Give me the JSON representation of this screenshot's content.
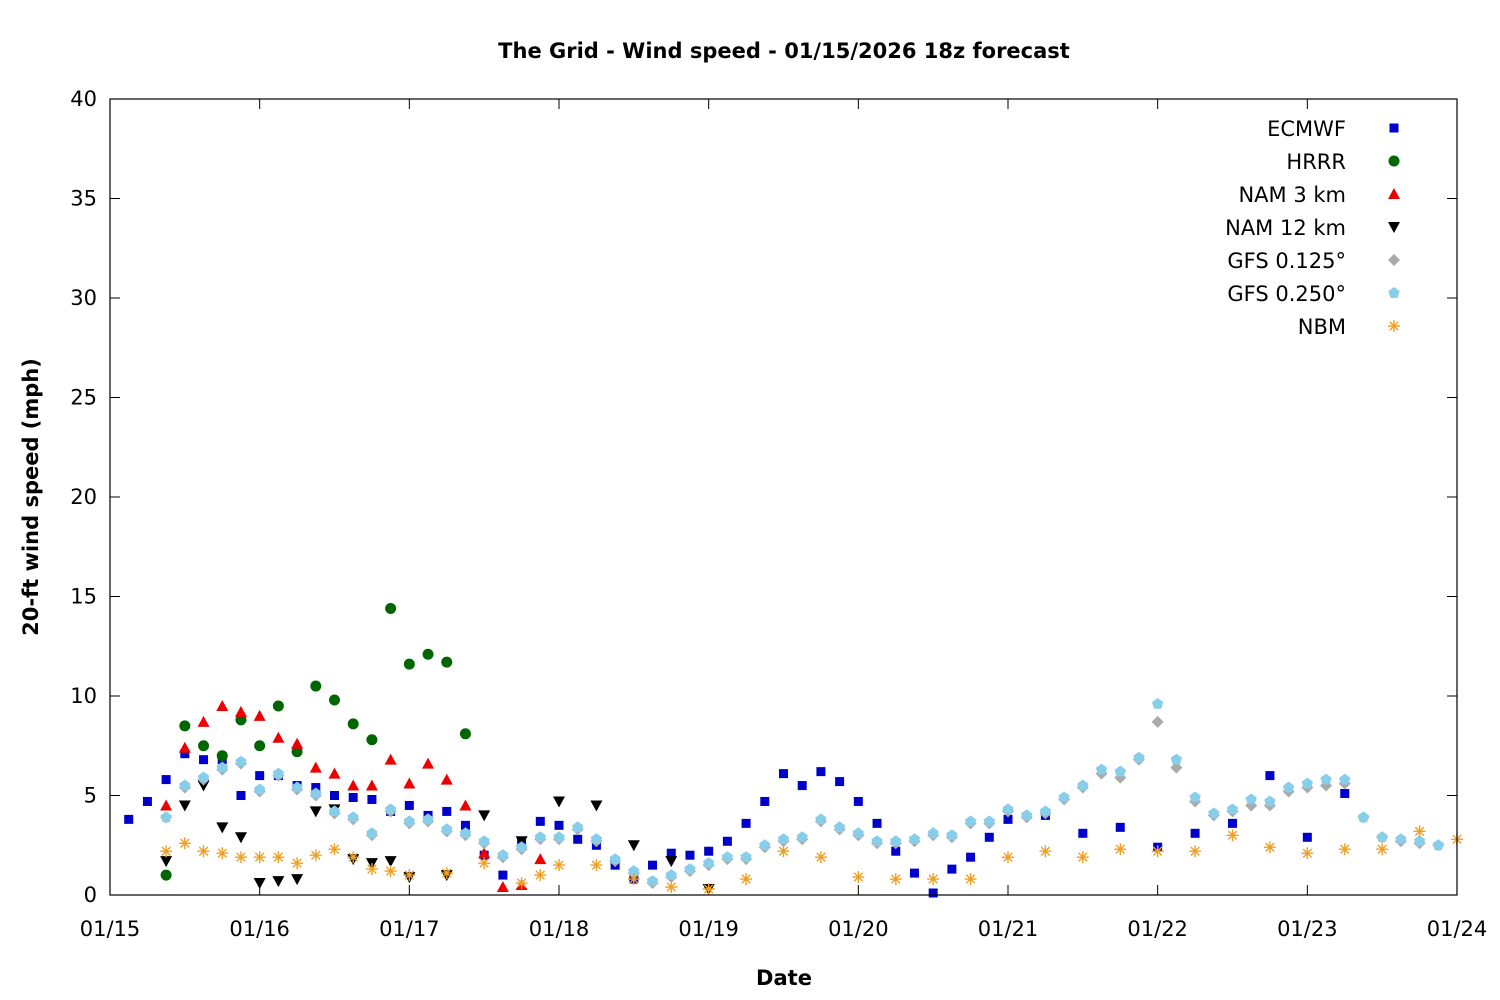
{
  "chart_data": {
    "type": "scatter",
    "title": "The Grid - Wind speed - 01/15/2026 18z forecast",
    "xlabel": "Date",
    "ylabel": "20-ft wind speed (mph)",
    "x_unit": "day",
    "xlim": [
      "01/15",
      "01/24"
    ],
    "ylim": [
      0,
      40
    ],
    "x_ticks": [
      "01/15",
      "01/16",
      "01/17",
      "01/18",
      "01/19",
      "01/20",
      "01/21",
      "01/22",
      "01/23",
      "01/24"
    ],
    "y_ticks": [
      0,
      5,
      10,
      15,
      20,
      25,
      30,
      35,
      40
    ],
    "grid": false,
    "legend_position": "top-right",
    "series": [
      {
        "name": "ECMWF",
        "marker": "square",
        "color": "#0000cc",
        "x": [
          "01/15 03:00",
          "01/15 06:00",
          "01/15 09:00",
          "01/15 12:00",
          "01/15 15:00",
          "01/15 18:00",
          "01/15 21:00",
          "01/16 00:00",
          "01/16 03:00",
          "01/16 06:00",
          "01/16 09:00",
          "01/16 12:00",
          "01/16 15:00",
          "01/16 18:00",
          "01/16 21:00",
          "01/17 00:00",
          "01/17 03:00",
          "01/17 06:00",
          "01/17 09:00",
          "01/17 12:00",
          "01/17 15:00",
          "01/17 18:00",
          "01/17 21:00",
          "01/18 00:00",
          "01/18 03:00",
          "01/18 06:00",
          "01/18 09:00",
          "01/18 12:00",
          "01/18 15:00",
          "01/18 18:00",
          "01/18 21:00",
          "01/19 00:00",
          "01/19 03:00",
          "01/19 06:00",
          "01/19 09:00",
          "01/19 12:00",
          "01/19 15:00",
          "01/19 18:00",
          "01/19 21:00",
          "01/20 00:00",
          "01/20 03:00",
          "01/20 06:00",
          "01/20 09:00",
          "01/20 12:00",
          "01/20 15:00",
          "01/20 18:00",
          "01/20 21:00",
          "01/21 00:00",
          "01/21 06:00",
          "01/21 12:00",
          "01/21 18:00",
          "01/22 00:00",
          "01/22 06:00",
          "01/22 12:00",
          "01/22 18:00",
          "01/23 00:00",
          "01/23 06:00"
        ],
        "y": [
          3.8,
          4.7,
          5.8,
          7.1,
          6.8,
          6.8,
          5.0,
          6.0,
          6.0,
          5.5,
          5.4,
          5.0,
          4.9,
          4.8,
          4.2,
          4.5,
          4.0,
          4.2,
          3.5,
          2.0,
          1.0,
          2.7,
          3.7,
          3.5,
          2.8,
          2.5,
          1.5,
          0.8,
          1.5,
          2.1,
          2.0,
          2.2,
          2.7,
          3.6,
          4.7,
          6.1,
          5.5,
          6.2,
          5.7,
          4.7,
          3.6,
          2.2,
          1.1,
          0.1,
          1.3,
          1.9,
          2.9,
          3.8,
          4.0,
          3.1,
          3.4,
          2.4,
          3.1,
          3.6,
          6.0,
          2.9,
          5.1
        ]
      },
      {
        "name": "HRRR",
        "marker": "circle",
        "color": "#006600",
        "x": [
          "01/15 09:00",
          "01/15 12:00",
          "01/15 15:00",
          "01/15 18:00",
          "01/15 21:00",
          "01/16 00:00",
          "01/16 03:00",
          "01/16 06:00",
          "01/16 09:00",
          "01/16 12:00",
          "01/16 15:00",
          "01/16 18:00",
          "01/16 21:00",
          "01/17 00:00",
          "01/17 03:00",
          "01/17 06:00",
          "01/17 09:00"
        ],
        "y": [
          1.0,
          8.5,
          7.5,
          7.0,
          8.8,
          7.5,
          9.5,
          7.2,
          10.5,
          9.8,
          8.6,
          7.8,
          14.4,
          11.6,
          12.1,
          11.7,
          8.1
        ]
      },
      {
        "name": "NAM 3 km",
        "marker": "triangle-up",
        "color": "#ee0000",
        "x": [
          "01/15 09:00",
          "01/15 12:00",
          "01/15 15:00",
          "01/15 18:00",
          "01/15 21:00",
          "01/16 00:00",
          "01/16 03:00",
          "01/16 06:00",
          "01/16 09:00",
          "01/16 12:00",
          "01/16 15:00",
          "01/16 18:00",
          "01/16 21:00",
          "01/17 00:00",
          "01/17 03:00",
          "01/17 06:00",
          "01/17 09:00",
          "01/17 12:00",
          "01/17 15:00",
          "01/17 18:00",
          "01/17 21:00"
        ],
        "y": [
          4.5,
          7.4,
          8.7,
          9.5,
          9.2,
          9.0,
          7.9,
          7.6,
          6.4,
          6.1,
          5.5,
          5.5,
          6.8,
          5.6,
          6.6,
          5.8,
          4.5,
          2.1,
          0.4,
          0.5,
          1.8
        ]
      },
      {
        "name": "NAM 12 km",
        "marker": "triangle-down",
        "color": "#000000",
        "x": [
          "01/15 09:00",
          "01/15 12:00",
          "01/15 15:00",
          "01/15 18:00",
          "01/15 21:00",
          "01/16 00:00",
          "01/16 03:00",
          "01/16 06:00",
          "01/16 09:00",
          "01/16 12:00",
          "01/16 15:00",
          "01/16 18:00",
          "01/16 21:00",
          "01/17 00:00",
          "01/17 06:00",
          "01/17 12:00",
          "01/17 18:00",
          "01/18 00:00",
          "01/18 06:00",
          "01/18 12:00",
          "01/18 18:00",
          "01/19 00:00"
        ],
        "y": [
          1.7,
          4.5,
          5.5,
          3.4,
          2.9,
          0.6,
          0.7,
          0.8,
          4.2,
          4.3,
          1.8,
          1.6,
          1.7,
          0.9,
          1.0,
          4.0,
          2.7,
          4.7,
          4.5,
          2.5,
          1.7,
          0.3
        ]
      },
      {
        "name": "GFS 0.125°",
        "marker": "diamond",
        "color": "#aaaaaa",
        "x": [
          "01/15 09:00",
          "01/15 12:00",
          "01/15 15:00",
          "01/15 18:00",
          "01/15 21:00",
          "01/16 00:00",
          "01/16 03:00",
          "01/16 06:00",
          "01/16 09:00",
          "01/16 12:00",
          "01/16 15:00",
          "01/16 18:00",
          "01/16 21:00",
          "01/17 00:00",
          "01/17 03:00",
          "01/17 06:00",
          "01/17 09:00",
          "01/17 12:00",
          "01/17 15:00",
          "01/17 18:00",
          "01/17 21:00",
          "01/18 00:00",
          "01/18 03:00",
          "01/18 06:00",
          "01/18 09:00",
          "01/18 12:00",
          "01/18 15:00",
          "01/18 18:00",
          "01/18 21:00",
          "01/19 00:00",
          "01/19 03:00",
          "01/19 06:00",
          "01/19 09:00",
          "01/19 12:00",
          "01/19 15:00",
          "01/19 18:00",
          "01/19 21:00",
          "01/20 00:00",
          "01/20 03:00",
          "01/20 06:00",
          "01/20 09:00",
          "01/20 12:00",
          "01/20 15:00",
          "01/20 18:00",
          "01/20 21:00",
          "01/21 00:00",
          "01/21 03:00",
          "01/21 06:00",
          "01/21 09:00",
          "01/21 12:00",
          "01/21 15:00",
          "01/21 18:00",
          "01/21 21:00",
          "01/22 00:00",
          "01/22 03:00",
          "01/22 06:00",
          "01/22 09:00",
          "01/22 12:00",
          "01/22 15:00",
          "01/22 18:00",
          "01/22 21:00",
          "01/23 00:00",
          "01/23 03:00",
          "01/23 06:00",
          "01/23 09:00",
          "01/23 12:00",
          "01/23 15:00",
          "01/23 18:00",
          "01/23 21:00"
        ],
        "y": [
          3.9,
          5.4,
          5.8,
          6.3,
          6.6,
          5.2,
          6.0,
          5.3,
          5.0,
          4.1,
          3.8,
          3.0,
          4.2,
          3.6,
          3.7,
          3.2,
          3.0,
          2.6,
          1.9,
          2.3,
          2.8,
          2.8,
          3.3,
          2.7,
          1.7,
          1.1,
          0.6,
          0.9,
          1.2,
          1.5,
          1.8,
          1.8,
          2.4,
          2.7,
          2.8,
          3.7,
          3.3,
          3.0,
          2.6,
          2.6,
          2.7,
          3.0,
          2.9,
          3.6,
          3.6,
          4.2,
          3.9,
          4.1,
          4.8,
          5.4,
          6.1,
          5.9,
          6.8,
          8.7,
          6.4,
          4.7,
          4.0,
          4.2,
          4.5,
          4.5,
          5.2,
          5.4,
          5.5,
          5.6,
          3.9,
          2.9,
          2.7,
          2.6,
          2.5
        ]
      },
      {
        "name": "GFS 0.250°",
        "marker": "pentagon",
        "color": "#87ceeb",
        "x": [
          "01/15 09:00",
          "01/15 12:00",
          "01/15 15:00",
          "01/15 18:00",
          "01/15 21:00",
          "01/16 00:00",
          "01/16 03:00",
          "01/16 06:00",
          "01/16 09:00",
          "01/16 12:00",
          "01/16 15:00",
          "01/16 18:00",
          "01/16 21:00",
          "01/17 00:00",
          "01/17 03:00",
          "01/17 06:00",
          "01/17 09:00",
          "01/17 12:00",
          "01/17 15:00",
          "01/17 18:00",
          "01/17 21:00",
          "01/18 00:00",
          "01/18 03:00",
          "01/18 06:00",
          "01/18 09:00",
          "01/18 12:00",
          "01/18 15:00",
          "01/18 18:00",
          "01/18 21:00",
          "01/19 00:00",
          "01/19 03:00",
          "01/19 06:00",
          "01/19 09:00",
          "01/19 12:00",
          "01/19 15:00",
          "01/19 18:00",
          "01/19 21:00",
          "01/20 00:00",
          "01/20 03:00",
          "01/20 06:00",
          "01/20 09:00",
          "01/20 12:00",
          "01/20 15:00",
          "01/20 18:00",
          "01/20 21:00",
          "01/21 00:00",
          "01/21 03:00",
          "01/21 06:00",
          "01/21 09:00",
          "01/21 12:00",
          "01/21 15:00",
          "01/21 18:00",
          "01/21 21:00",
          "01/22 00:00",
          "01/22 03:00",
          "01/22 06:00",
          "01/22 09:00",
          "01/22 12:00",
          "01/22 15:00",
          "01/22 18:00",
          "01/22 21:00",
          "01/23 00:00",
          "01/23 03:00",
          "01/23 06:00",
          "01/23 09:00",
          "01/23 12:00",
          "01/23 15:00",
          "01/23 18:00",
          "01/23 21:00"
        ],
        "y": [
          3.9,
          5.5,
          5.9,
          6.4,
          6.7,
          5.3,
          6.1,
          5.4,
          5.1,
          4.2,
          3.9,
          3.1,
          4.3,
          3.7,
          3.8,
          3.3,
          3.1,
          2.7,
          2.0,
          2.4,
          2.9,
          2.9,
          3.4,
          2.8,
          1.8,
          1.2,
          0.7,
          1.0,
          1.3,
          1.6,
          1.9,
          1.9,
          2.5,
          2.8,
          2.9,
          3.8,
          3.4,
          3.1,
          2.7,
          2.7,
          2.8,
          3.1,
          3.0,
          3.7,
          3.7,
          4.3,
          4.0,
          4.2,
          4.9,
          5.5,
          6.3,
          6.2,
          6.9,
          9.6,
          6.8,
          4.9,
          4.1,
          4.3,
          4.8,
          4.7,
          5.4,
          5.6,
          5.8,
          5.8,
          3.9,
          2.9,
          2.8,
          2.7,
          2.5
        ]
      },
      {
        "name": "NBM",
        "marker": "asterisk",
        "color": "#f0a020",
        "x": [
          "01/15 09:00",
          "01/15 12:00",
          "01/15 15:00",
          "01/15 18:00",
          "01/15 21:00",
          "01/16 00:00",
          "01/16 03:00",
          "01/16 06:00",
          "01/16 09:00",
          "01/16 12:00",
          "01/16 15:00",
          "01/16 18:00",
          "01/16 21:00",
          "01/17 00:00",
          "01/17 06:00",
          "01/17 12:00",
          "01/17 18:00",
          "01/17 21:00",
          "01/18 00:00",
          "01/18 06:00",
          "01/18 12:00",
          "01/18 18:00",
          "01/19 00:00",
          "01/19 06:00",
          "01/19 12:00",
          "01/19 18:00",
          "01/20 00:00",
          "01/20 06:00",
          "01/20 12:00",
          "01/20 18:00",
          "01/21 00:00",
          "01/21 06:00",
          "01/21 12:00",
          "01/21 18:00",
          "01/22 00:00",
          "01/22 06:00",
          "01/22 12:00",
          "01/22 18:00",
          "01/23 00:00",
          "01/23 06:00",
          "01/23 12:00",
          "01/23 18:00",
          "01/24 00:00"
        ],
        "y": [
          2.2,
          2.6,
          2.2,
          2.1,
          1.9,
          1.9,
          1.9,
          1.6,
          2.0,
          2.3,
          1.9,
          1.3,
          1.2,
          1.0,
          1.1,
          1.6,
          0.6,
          1.0,
          1.5,
          1.5,
          0.8,
          0.4,
          0.3,
          0.8,
          2.2,
          1.9,
          0.9,
          0.8,
          0.8,
          0.8,
          1.9,
          2.2,
          1.9,
          2.3,
          2.2,
          2.2,
          3.0,
          2.4,
          2.1,
          2.3,
          2.3,
          3.2,
          2.8
        ]
      }
    ]
  }
}
